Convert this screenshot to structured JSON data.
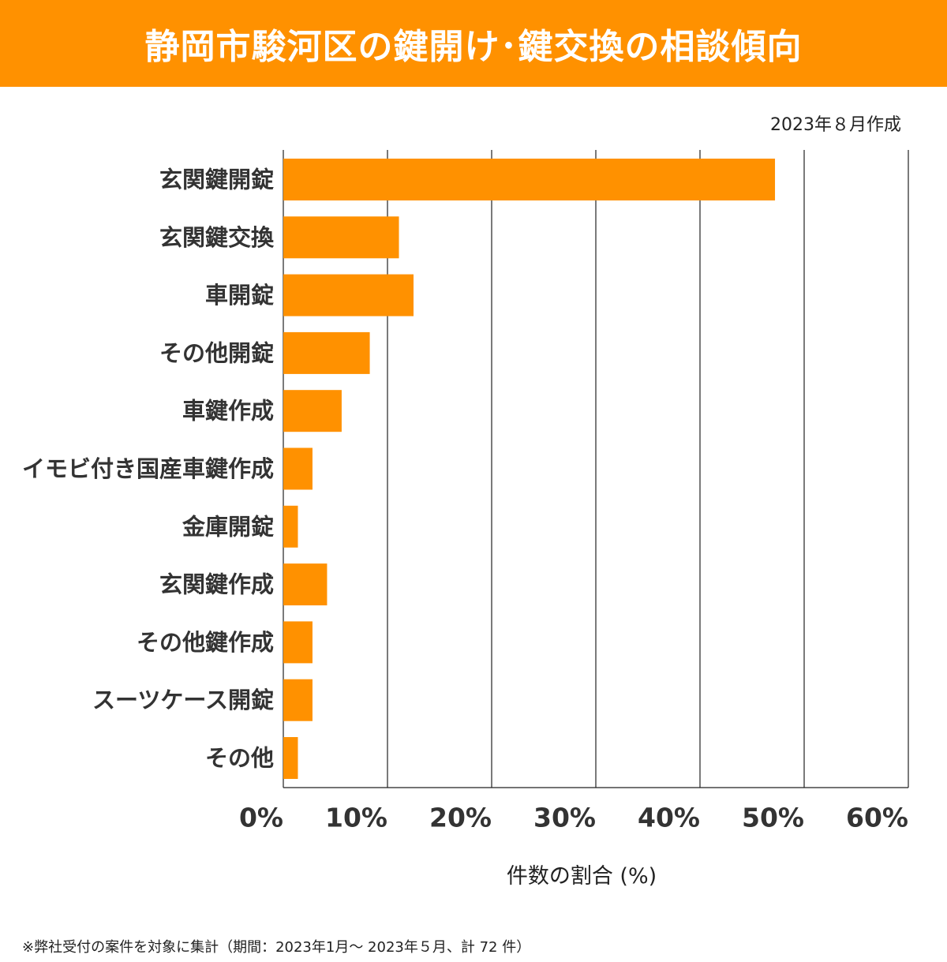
{
  "title": "静岡市駿河区の鍵開け･鍵交換の相談傾向",
  "created_note": "2023年８月作成",
  "footnote": "※弊社受付の案件を対象に集計（期間：2023年1月～ 2023年５月、計 72 件）",
  "colors": {
    "accent": "#FF9100",
    "bar": "#FF9100",
    "grid": "#222222",
    "text": "#333333"
  },
  "chart_data": {
    "type": "bar",
    "orientation": "horizontal",
    "title": "",
    "xlabel": "件数の割合 (%)",
    "ylabel": "",
    "xlim": [
      0,
      60
    ],
    "x_ticks": [
      0,
      10,
      20,
      30,
      40,
      50,
      60
    ],
    "x_tick_labels": [
      "0%",
      "10%",
      "20%",
      "30%",
      "40%",
      "50%",
      "60%"
    ],
    "grid": true,
    "categories": [
      "玄関鍵開錠",
      "玄関鍵交換",
      "車開錠",
      "その他開錠",
      "車鍵作成",
      "イモビ付き国産車鍵作成",
      "金庫開錠",
      "玄関鍵作成",
      "その他鍵作成",
      "スーツケース開錠",
      "その他"
    ],
    "values": [
      47.2,
      11.1,
      12.5,
      8.3,
      5.6,
      2.8,
      1.4,
      4.2,
      2.8,
      2.8,
      1.4
    ]
  }
}
